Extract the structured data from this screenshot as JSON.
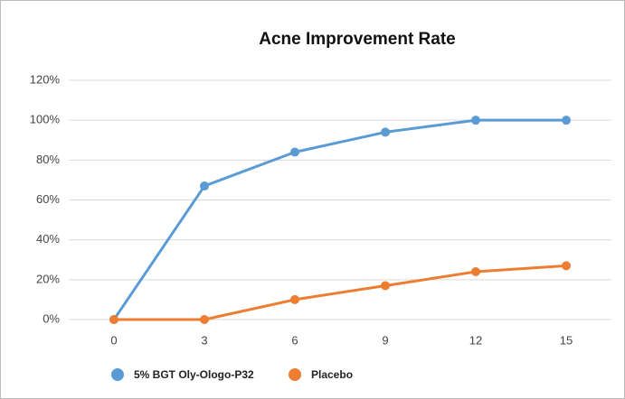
{
  "chart_data": {
    "type": "line",
    "title": "Acne Improvement Rate",
    "categories": [
      "0",
      "3",
      "6",
      "9",
      "12",
      "15"
    ],
    "series": [
      {
        "name": "5% BGT Oly-Ologo-P32",
        "color": "#5b9bd5",
        "values": [
          0,
          67,
          84,
          94,
          100,
          100
        ]
      },
      {
        "name": "Placebo",
        "color": "#ed7d31",
        "values": [
          0,
          0,
          10,
          17,
          24,
          27
        ]
      }
    ],
    "ylim": [
      0,
      120
    ],
    "yticks": [
      {
        "value": 0,
        "label": "0%"
      },
      {
        "value": 20,
        "label": "20%"
      },
      {
        "value": 40,
        "label": "40%"
      },
      {
        "value": 60,
        "label": "60%"
      },
      {
        "value": 80,
        "label": "80%"
      },
      {
        "value": 100,
        "label": "100%"
      },
      {
        "value": 120,
        "label": "120%"
      }
    ],
    "grid": true
  }
}
